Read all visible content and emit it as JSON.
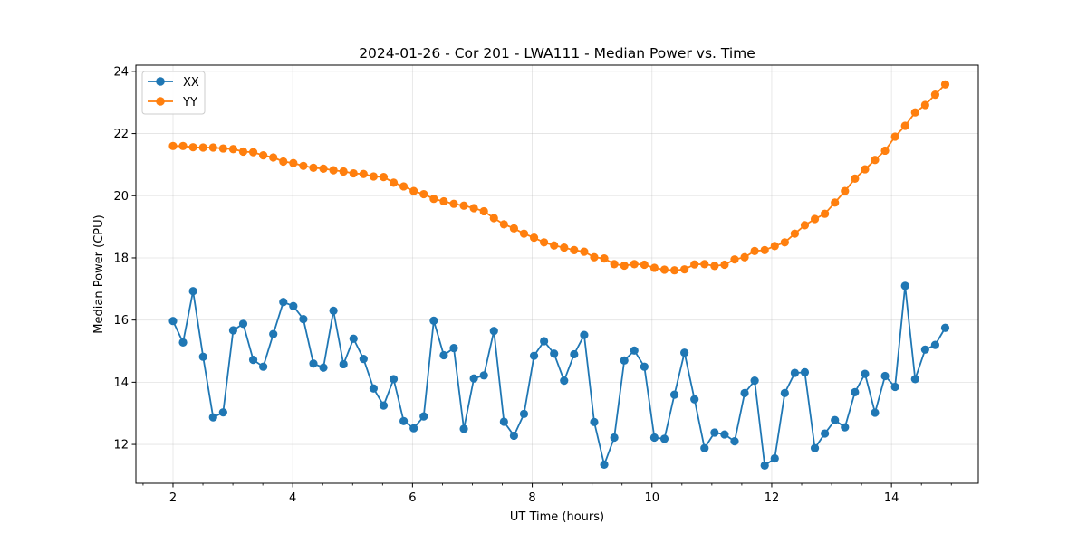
{
  "chart_data": {
    "type": "line",
    "title": "2024-01-26 - Cor 201 - LWA111 - Median Power vs. Time",
    "xlabel": "UT Time (hours)",
    "ylabel": "Median Power (CPU)",
    "xlim": [
      1.38,
      15.45
    ],
    "ylim": [
      10.75,
      24.2
    ],
    "xticks": [
      2,
      4,
      6,
      8,
      10,
      12,
      14
    ],
    "yticks": [
      12,
      14,
      16,
      18,
      20,
      22,
      24
    ],
    "grid": true,
    "legend_position": "top-left",
    "x": [
      2.0,
      2.1675,
      2.335,
      2.5025,
      2.67,
      2.8375,
      3.005,
      3.1725,
      3.34,
      3.5075,
      3.675,
      3.8425,
      4.01,
      4.1775,
      4.345,
      4.5125,
      4.68,
      4.8475,
      5.015,
      5.1825,
      5.35,
      5.5175,
      5.685,
      5.8525,
      6.02,
      6.1875,
      6.355,
      6.5225,
      6.69,
      6.8575,
      7.025,
      7.1925,
      7.36,
      7.5275,
      7.695,
      7.8625,
      8.03,
      8.1975,
      8.365,
      8.5325,
      8.7,
      8.8675,
      9.035,
      9.2025,
      9.37,
      9.5375,
      9.705,
      9.8725,
      10.04,
      10.2075,
      10.375,
      10.5425,
      10.71,
      10.8775,
      11.045,
      11.2125,
      11.38,
      11.5475,
      11.715,
      11.8825,
      12.05,
      12.2175,
      12.385,
      12.5525,
      12.72,
      12.8875,
      13.055,
      13.2225,
      13.39,
      13.5575,
      13.725,
      13.8925,
      14.06,
      14.2275,
      14.395,
      14.5625,
      14.73,
      14.8975
    ],
    "series": [
      {
        "name": "XX",
        "color": "#1f77b4",
        "values": [
          15.97,
          15.28,
          16.93,
          14.82,
          12.87,
          13.03,
          15.67,
          15.88,
          14.72,
          14.5,
          15.55,
          16.58,
          16.45,
          16.03,
          14.6,
          14.47,
          16.3,
          14.58,
          15.4,
          14.75,
          13.8,
          13.25,
          14.1,
          12.75,
          12.52,
          12.9,
          15.98,
          14.87,
          15.1,
          12.5,
          14.12,
          14.22,
          15.65,
          12.73,
          12.28,
          12.98,
          14.85,
          15.32,
          14.92,
          14.05,
          14.9,
          15.52,
          12.72,
          11.35,
          12.22,
          14.7,
          15.02,
          14.5,
          12.22,
          12.18,
          13.6,
          14.95,
          13.45,
          11.88,
          12.38,
          12.32,
          12.1,
          13.65,
          14.05,
          11.32,
          11.55,
          13.65,
          14.3,
          14.32,
          11.88,
          12.35,
          12.78,
          12.55,
          13.68,
          14.27,
          13.02,
          14.2,
          13.85,
          17.1,
          14.1,
          15.05,
          15.2,
          15.75
        ]
      },
      {
        "name": "YY",
        "color": "#ff7f0e",
        "values": [
          21.6,
          21.6,
          21.56,
          21.55,
          21.55,
          21.52,
          21.5,
          21.42,
          21.4,
          21.3,
          21.23,
          21.1,
          21.05,
          20.96,
          20.9,
          20.87,
          20.82,
          20.78,
          20.72,
          20.7,
          20.62,
          20.6,
          20.42,
          20.3,
          20.15,
          20.05,
          19.9,
          19.82,
          19.74,
          19.68,
          19.6,
          19.5,
          19.28,
          19.08,
          18.95,
          18.78,
          18.65,
          18.5,
          18.4,
          18.33,
          18.25,
          18.2,
          18.02,
          17.98,
          17.8,
          17.75,
          17.8,
          17.78,
          17.68,
          17.62,
          17.6,
          17.63,
          17.79,
          17.8,
          17.74,
          17.78,
          17.95,
          18.02,
          18.22,
          18.25,
          18.38,
          18.5,
          18.78,
          19.05,
          19.25,
          19.42,
          19.78,
          20.15,
          20.55,
          20.85,
          21.15,
          21.45,
          21.9,
          22.25,
          22.68,
          22.92,
          23.25,
          23.58
        ]
      }
    ]
  }
}
